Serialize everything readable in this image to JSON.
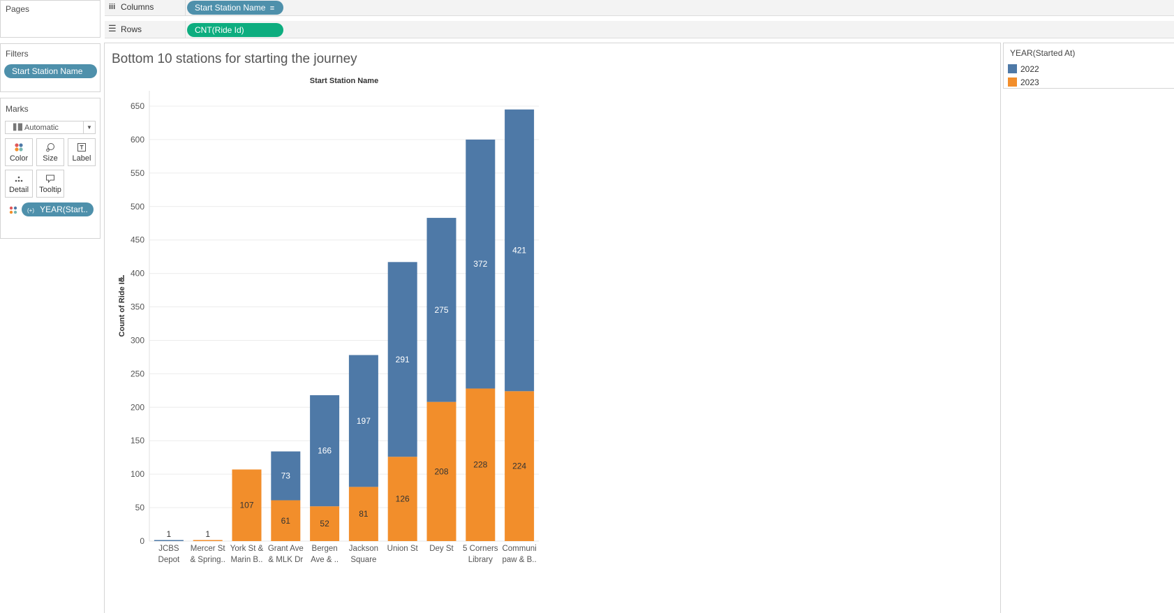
{
  "pages_label": "Pages",
  "shelves": {
    "columns_label": "Columns",
    "columns_pill": "Start Station Name",
    "rows_label": "Rows",
    "rows_pill": "CNT(Ride Id)"
  },
  "filters": {
    "title": "Filters",
    "pill": "Start Station Name"
  },
  "marks": {
    "title": "Marks",
    "type": "Automatic",
    "buttons": [
      "Color",
      "Size",
      "Label",
      "Detail",
      "Tooltip"
    ],
    "field_pill": "YEAR(Start..",
    "field_pill_icon": "(+)"
  },
  "legend": {
    "title": "YEAR(Started At)",
    "items": [
      {
        "label": "2022",
        "color": "#4e79a7"
      },
      {
        "label": "2023",
        "color": "#f28e2b"
      }
    ]
  },
  "colors": {
    "pill_blue": "#4e90ab",
    "pill_green": "#0dad7f",
    "series_2022": "#4e79a7",
    "series_2023": "#f28e2b"
  },
  "chart_data": {
    "type": "bar",
    "stacked": true,
    "title": "Bottom 10 stations for starting the journey",
    "column_header": "Start Station Name",
    "ylabel": "Count of Ride Id",
    "ylim": [
      0,
      650
    ],
    "yticks": [
      0,
      50,
      100,
      150,
      200,
      250,
      300,
      350,
      400,
      450,
      500,
      550,
      600,
      650
    ],
    "grid": true,
    "legend_position": "right",
    "categories": [
      [
        "JCBS",
        "Depot"
      ],
      [
        "Mercer St",
        "& Spring.."
      ],
      [
        "York St &",
        "Marin B.."
      ],
      [
        "Grant Ave",
        "& MLK Dr"
      ],
      [
        "Bergen",
        "Ave & .."
      ],
      [
        "Jackson",
        "Square"
      ],
      [
        "Union St",
        ""
      ],
      [
        "Dey St",
        ""
      ],
      [
        "5 Corners",
        "Library"
      ],
      [
        "Communi",
        "paw & B.."
      ]
    ],
    "series": [
      {
        "name": "2023",
        "values": [
          0,
          1,
          107,
          61,
          52,
          81,
          126,
          208,
          228,
          224
        ]
      },
      {
        "name": "2022",
        "values": [
          1,
          0,
          0,
          73,
          166,
          197,
          291,
          275,
          372,
          421
        ]
      }
    ],
    "labels": {
      "2023": [
        "",
        "1",
        "107",
        "61",
        "52",
        "81",
        "126",
        "208",
        "228",
        "224"
      ],
      "2022": [
        "1",
        "",
        "",
        "73",
        "166",
        "197",
        "291",
        "275",
        "372",
        "421"
      ]
    }
  }
}
